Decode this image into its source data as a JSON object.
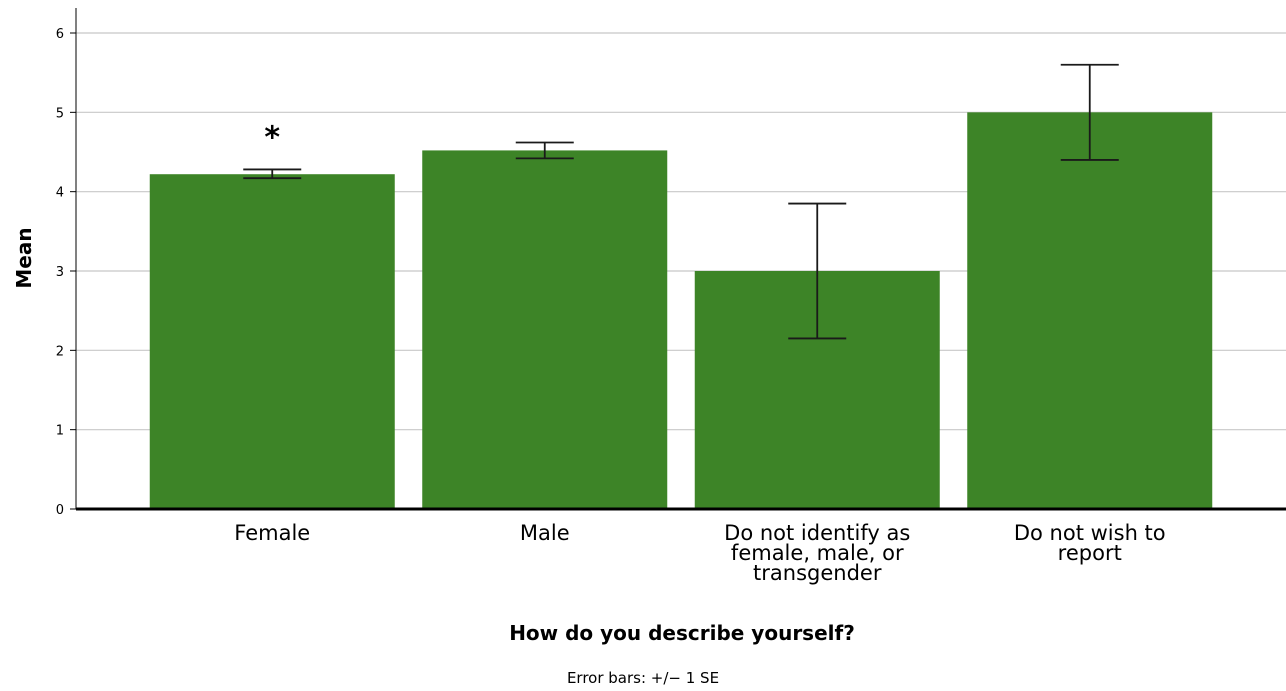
{
  "chart_data": {
    "type": "bar",
    "categories": [
      [
        "Female"
      ],
      [
        "Male"
      ],
      [
        "Do not identify as",
        "female, male, or",
        "transgender"
      ],
      [
        "Do not wish to",
        "report"
      ]
    ],
    "values": [
      4.22,
      4.52,
      3.0,
      5.0
    ],
    "error_low": [
      4.17,
      4.42,
      2.15,
      4.4
    ],
    "error_high": [
      4.28,
      4.62,
      3.85,
      5.6
    ],
    "xlabel": "How do you describe yourself?",
    "ylabel": "Mean",
    "ylim": [
      0,
      6
    ],
    "yticks": [
      0,
      1,
      2,
      3,
      4,
      5,
      6
    ],
    "grid": true,
    "bar_color": "#3d8427",
    "annotations": [
      {
        "text": "*",
        "category_index": 0
      }
    ],
    "footnote": "Error bars: +/− 1 SE"
  }
}
